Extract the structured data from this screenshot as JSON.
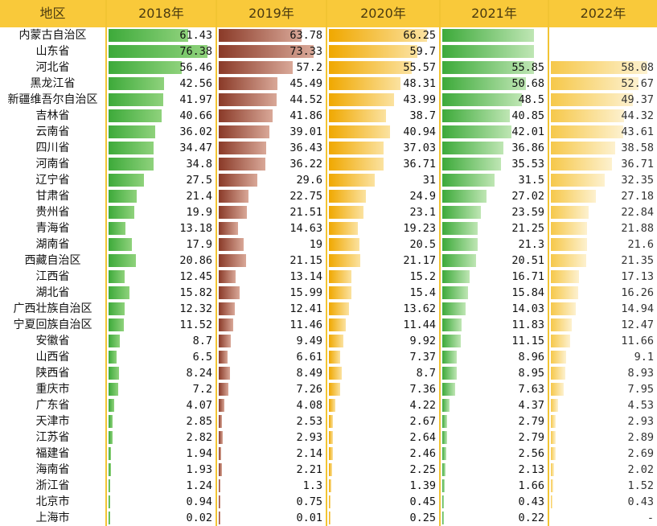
{
  "header": {
    "region_label": "地区",
    "years": [
      "2018年",
      "2019年",
      "2020年",
      "2021年",
      "2022年"
    ]
  },
  "colors": {
    "header_bg": "#f9c93a",
    "grid_line": "#f2c433",
    "bar_2018": "#4cb84a",
    "bar_2019": "#9c4a36",
    "bar_2020": "#f3b21b",
    "bar_2021": "#4cb84a",
    "bar_2022": "#f6d57a"
  },
  "rows": [
    {
      "region": "内蒙古自治区",
      "v2018": "61.43",
      "v2019": "63.78",
      "v2020": "66.25",
      "v2021": "",
      "v2022": ""
    },
    {
      "region": "山东省",
      "v2018": "76.38",
      "v2019": "73.33",
      "v2020": "59.7",
      "v2021": "",
      "v2022": ""
    },
    {
      "region": "河北省",
      "v2018": "56.46",
      "v2019": "57.2",
      "v2020": "55.57",
      "v2021": "55.85",
      "v2022": "58.08"
    },
    {
      "region": "黑龙江省",
      "v2018": "42.56",
      "v2019": "45.49",
      "v2020": "48.31",
      "v2021": "50.68",
      "v2022": "52.67"
    },
    {
      "region": "新疆维吾尔自治区",
      "v2018": "41.97",
      "v2019": "44.52",
      "v2020": "43.99",
      "v2021": "48.5",
      "v2022": "49.37"
    },
    {
      "region": "吉林省",
      "v2018": "40.66",
      "v2019": "41.86",
      "v2020": "38.7",
      "v2021": "40.85",
      "v2022": "44.32"
    },
    {
      "region": "云南省",
      "v2018": "36.02",
      "v2019": "39.01",
      "v2020": "40.94",
      "v2021": "42.01",
      "v2022": "43.61"
    },
    {
      "region": "四川省",
      "v2018": "34.47",
      "v2019": "36.43",
      "v2020": "37.03",
      "v2021": "36.86",
      "v2022": "38.58"
    },
    {
      "region": "河南省",
      "v2018": "34.8",
      "v2019": "36.22",
      "v2020": "36.71",
      "v2021": "35.53",
      "v2022": "36.71"
    },
    {
      "region": "辽宁省",
      "v2018": "27.5",
      "v2019": "29.6",
      "v2020": "31",
      "v2021": "31.5",
      "v2022": "32.35"
    },
    {
      "region": "甘肃省",
      "v2018": "21.4",
      "v2019": "22.75",
      "v2020": "24.9",
      "v2021": "27.02",
      "v2022": "27.18"
    },
    {
      "region": "贵州省",
      "v2018": "19.9",
      "v2019": "21.51",
      "v2020": "23.1",
      "v2021": "23.59",
      "v2022": "22.84"
    },
    {
      "region": "青海省",
      "v2018": "13.18",
      "v2019": "14.63",
      "v2020": "19.23",
      "v2021": "21.25",
      "v2022": "21.88"
    },
    {
      "region": "湖南省",
      "v2018": "17.9",
      "v2019": "19",
      "v2020": "20.5",
      "v2021": "21.3",
      "v2022": "21.6"
    },
    {
      "region": "西藏自治区",
      "v2018": "20.86",
      "v2019": "21.15",
      "v2020": "21.17",
      "v2021": "20.51",
      "v2022": "21.35"
    },
    {
      "region": "江西省",
      "v2018": "12.45",
      "v2019": "13.14",
      "v2020": "15.2",
      "v2021": "16.71",
      "v2022": "17.13"
    },
    {
      "region": "湖北省",
      "v2018": "15.82",
      "v2019": "15.99",
      "v2020": "15.4",
      "v2021": "15.84",
      "v2022": "16.26"
    },
    {
      "region": "广西壮族自治区",
      "v2018": "12.32",
      "v2019": "12.41",
      "v2020": "13.62",
      "v2021": "14.03",
      "v2022": "14.94"
    },
    {
      "region": "宁夏回族自治区",
      "v2018": "11.52",
      "v2019": "11.46",
      "v2020": "11.44",
      "v2021": "11.83",
      "v2022": "12.47"
    },
    {
      "region": "安徽省",
      "v2018": "8.7",
      "v2019": "9.49",
      "v2020": "9.92",
      "v2021": "11.15",
      "v2022": "11.66"
    },
    {
      "region": "山西省",
      "v2018": "6.5",
      "v2019": "6.61",
      "v2020": "7.37",
      "v2021": "8.96",
      "v2022": "9.1"
    },
    {
      "region": "陕西省",
      "v2018": "8.24",
      "v2019": "8.49",
      "v2020": "8.7",
      "v2021": "8.95",
      "v2022": "8.93"
    },
    {
      "region": "重庆市",
      "v2018": "7.2",
      "v2019": "7.26",
      "v2020": "7.36",
      "v2021": "7.63",
      "v2022": "7.95"
    },
    {
      "region": "广东省",
      "v2018": "4.07",
      "v2019": "4.08",
      "v2020": "4.22",
      "v2021": "4.37",
      "v2022": "4.53"
    },
    {
      "region": "天津市",
      "v2018": "2.85",
      "v2019": "2.53",
      "v2020": "2.67",
      "v2021": "2.79",
      "v2022": "2.93"
    },
    {
      "region": "江苏省",
      "v2018": "2.82",
      "v2019": "2.93",
      "v2020": "2.64",
      "v2021": "2.79",
      "v2022": "2.89"
    },
    {
      "region": "福建省",
      "v2018": "1.94",
      "v2019": "2.14",
      "v2020": "2.46",
      "v2021": "2.56",
      "v2022": "2.69"
    },
    {
      "region": "海南省",
      "v2018": "1.93",
      "v2019": "2.21",
      "v2020": "2.25",
      "v2021": "2.13",
      "v2022": "2.02"
    },
    {
      "region": "浙江省",
      "v2018": "1.24",
      "v2019": "1.3",
      "v2020": "1.39",
      "v2021": "1.66",
      "v2022": "1.52"
    },
    {
      "region": "北京市",
      "v2018": "0.94",
      "v2019": "0.75",
      "v2020": "0.45",
      "v2021": "0.43",
      "v2022": "0.43"
    },
    {
      "region": "上海市",
      "v2018": "0.02",
      "v2019": "0.01",
      "v2020": "0.25",
      "v2021": "0.22",
      "v2022": "-"
    }
  ],
  "bar_fill_2021_top": [
    0.9,
    0.9
  ]
}
